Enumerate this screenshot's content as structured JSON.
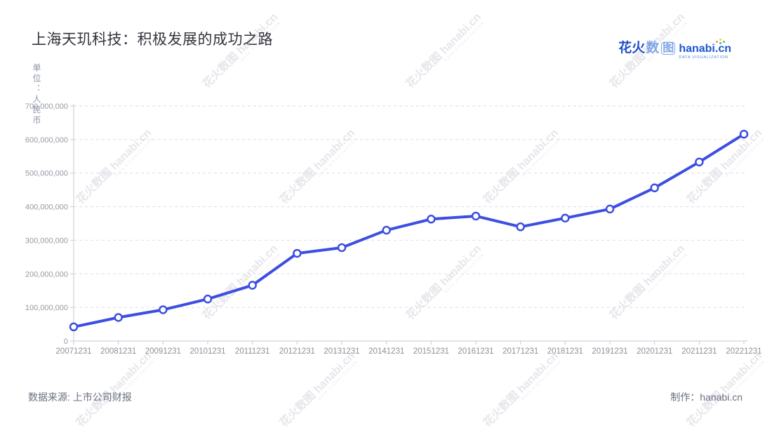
{
  "title": "上海天玑科技：积极发展的成功之路",
  "header_logo": {
    "cn_bold": "花火",
    "cn_light": "数",
    "cn_boxed": "图",
    "en": "hanabi.cn",
    "tagline": "DATA VISUALIZATION"
  },
  "watermark": {
    "line1": "花火数图 hanabi.cn",
    "line2": "DATA VISUALIZATION"
  },
  "footer": {
    "source_label": "数据来源: 上市公司财报",
    "credit_label": "制作：hanabi.cn"
  },
  "chart_data": {
    "type": "line",
    "title": "上海天玑科技：积极发展的成功之路",
    "unit_label": "单位：人民币",
    "xlabel": "",
    "ylabel": "单位：人民币",
    "categories": [
      "20071231",
      "20081231",
      "20091231",
      "20101231",
      "20111231",
      "20121231",
      "20131231",
      "20141231",
      "20151231",
      "20161231",
      "20171231",
      "20181231",
      "20191231",
      "20201231",
      "20211231",
      "20221231"
    ],
    "values": [
      42000000,
      70000000,
      93000000,
      125000000,
      166000000,
      261000000,
      278000000,
      330000000,
      363000000,
      372000000,
      340000000,
      366000000,
      393000000,
      456000000,
      533000000,
      616000000
    ],
    "ylim": [
      0,
      700000000
    ],
    "y_tick_step": 100000000,
    "y_tick_labels": [
      "0",
      "100,000,000",
      "200,000,000",
      "300,000,000",
      "400,000,000",
      "500,000,000",
      "600,000,000",
      "700,000,000"
    ],
    "grid": "horizontal-dashed",
    "legend": "none",
    "line_color": "#3d4fe0",
    "marker": "open-circle",
    "marker_fill": "#ffffff",
    "axis_color": "#c9cad2",
    "gridline_color": "#dcdde3",
    "y_tick_label_color": "#9799a3",
    "x_tick_label_color": "#8f909a"
  }
}
